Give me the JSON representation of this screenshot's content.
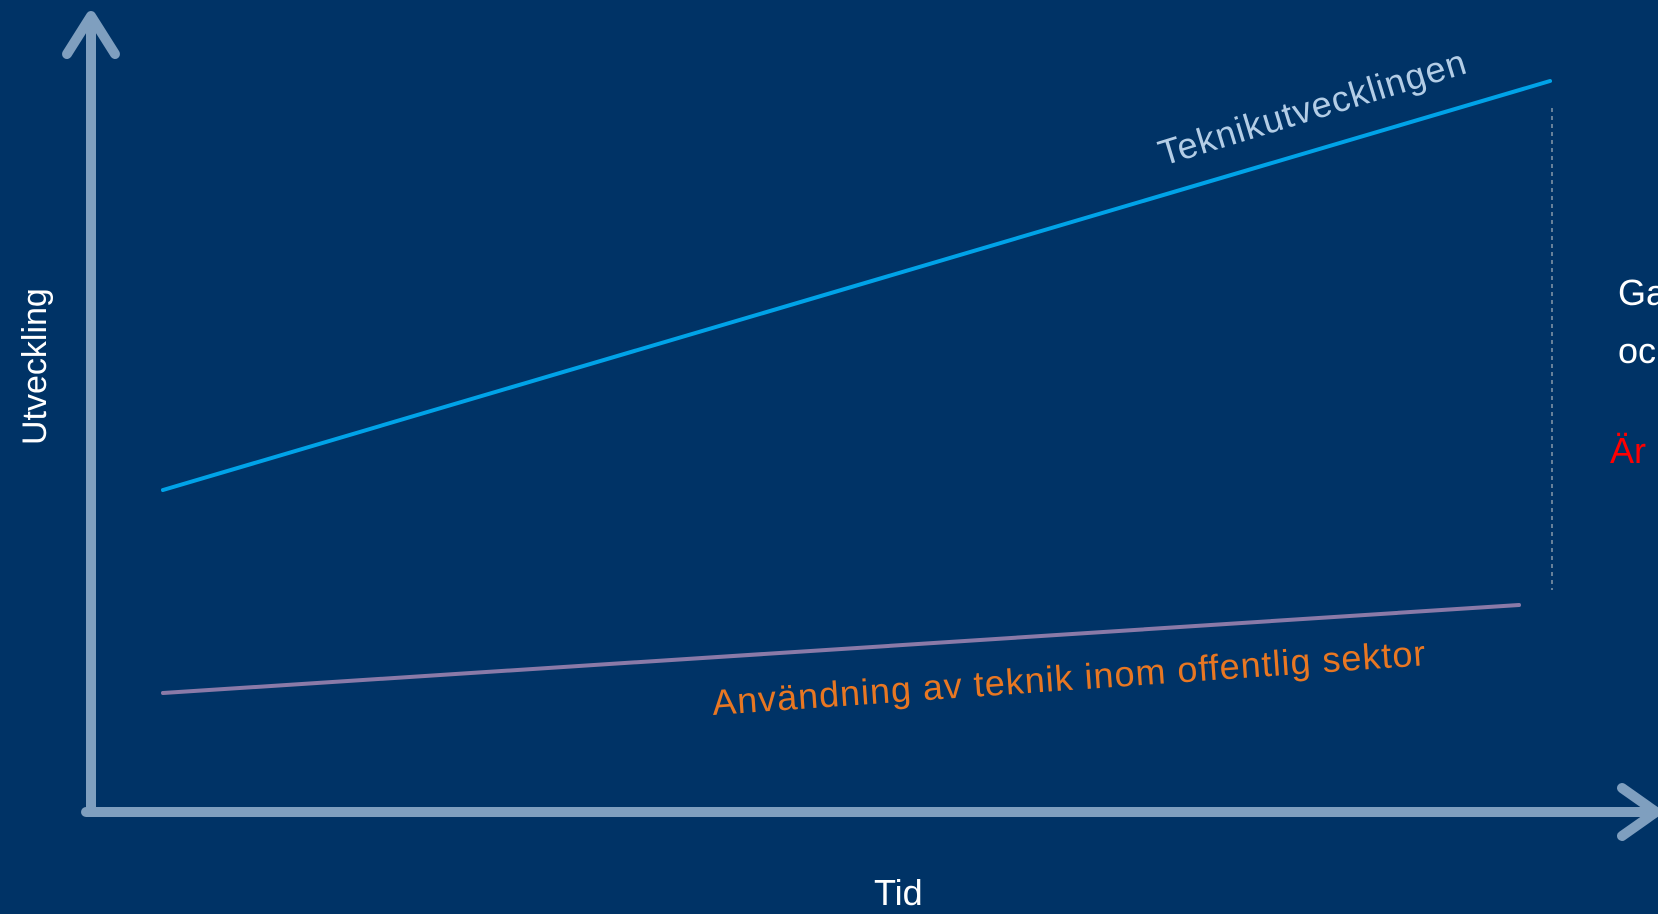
{
  "diagram": {
    "axis_x_label": "Tid",
    "axis_y_label": "Utveckling",
    "line_tech_label": "Teknikutvecklingen",
    "line_public_label": "Användning av teknik inom offentlig sektor",
    "side_text_line1": "Ga",
    "side_text_line2": "oc",
    "side_text_red": "Är",
    "colors": {
      "background": "#003366",
      "axis": "#7f9fbf",
      "tech_line": "#00a3e8",
      "tech_label": "#b3cde6",
      "public_line": "#8a7aa8",
      "public_label": "#e87722",
      "red_text": "#ff0000",
      "dashed": "#8899aa"
    }
  }
}
